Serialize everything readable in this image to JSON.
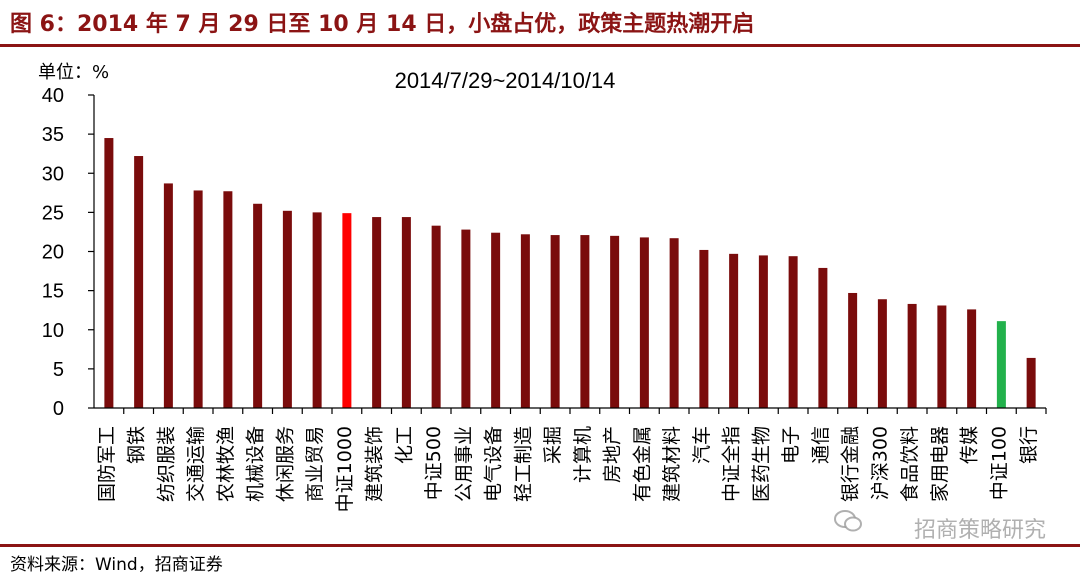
{
  "header": {
    "title": "图 6：2014 年 7 月 29 日至 10 月 14 日，小盘占优，政策主题热潮开启"
  },
  "footer": {
    "source": "资料来源：Wind，招商证券",
    "watermark": "招商策略研究"
  },
  "colors": {
    "default_bar": "#7a0c0c",
    "highlight_red": "#ff0000",
    "highlight_green": "#22b14c",
    "brand": "#8b1414"
  },
  "chart_data": {
    "type": "bar",
    "subtitle": "2014/7/29~2014/10/14",
    "unit_label": "单位：%",
    "ylim": [
      0,
      40
    ],
    "yticks": [
      0,
      5,
      10,
      15,
      20,
      25,
      30,
      35,
      40
    ],
    "grid": false,
    "categories": [
      "国防军工",
      "钢铁",
      "纺织服装",
      "交通运输",
      "农林牧渔",
      "机械设备",
      "休闲服务",
      "商业贸易",
      "中证1000",
      "建筑装饰",
      "化工",
      "中证500",
      "公用事业",
      "电气设备",
      "轻工制造",
      "采掘",
      "计算机",
      "房地产",
      "有色金属",
      "建筑材料",
      "汽车",
      "中证全指",
      "医药生物",
      "电子",
      "通信",
      "银行金融",
      "沪深300",
      "食品饮料",
      "家用电器",
      "传媒",
      "中证100",
      "银行"
    ],
    "values": [
      34.5,
      32.2,
      28.7,
      27.8,
      27.7,
      26.1,
      25.2,
      25.0,
      24.9,
      24.4,
      24.4,
      23.3,
      22.8,
      22.4,
      22.2,
      22.1,
      22.1,
      22.0,
      21.8,
      21.7,
      20.2,
      19.7,
      19.5,
      19.4,
      17.9,
      14.7,
      13.9,
      13.3,
      13.1,
      12.6,
      11.1,
      6.4
    ],
    "highlight": {
      "中证1000": "red",
      "中证100": "green"
    }
  }
}
